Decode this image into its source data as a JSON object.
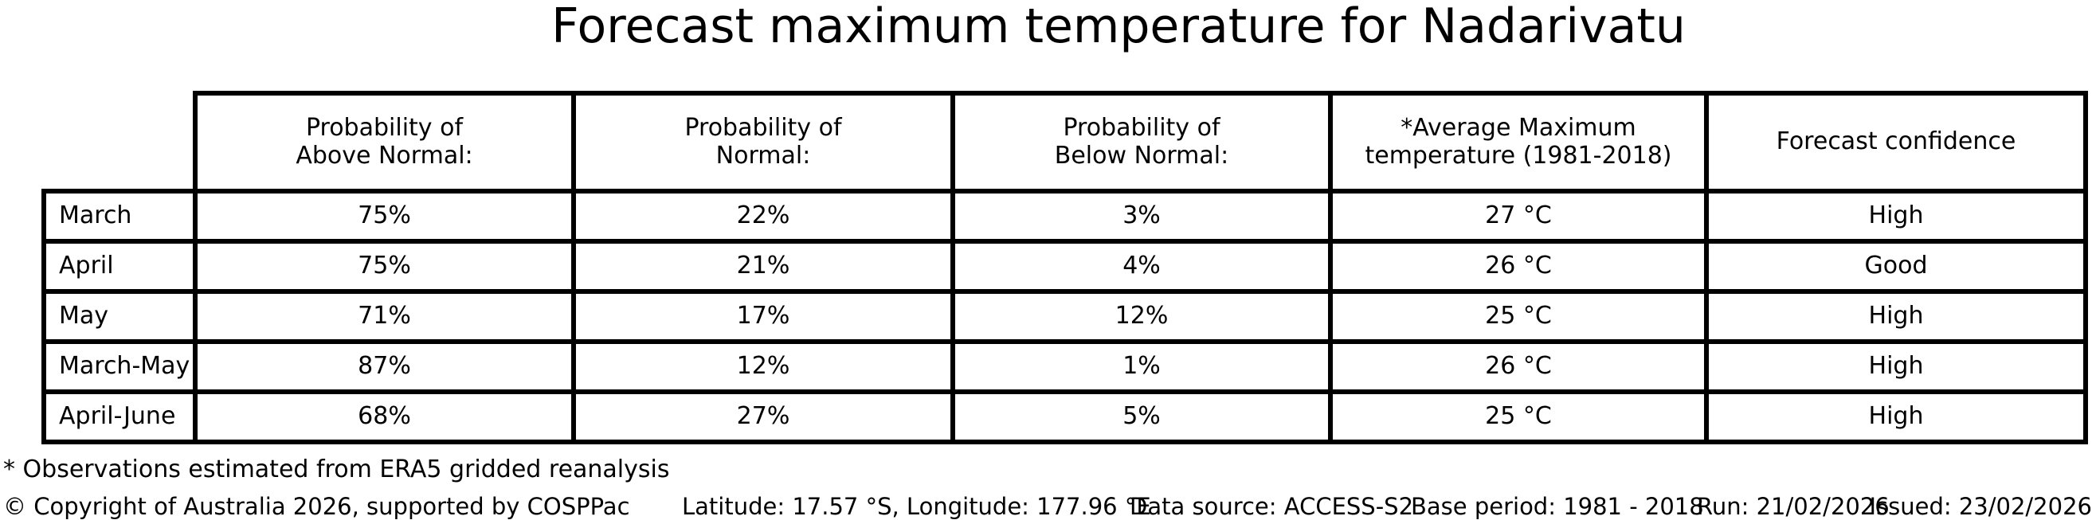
{
  "title": "Forecast maximum temperature for Nadarivatu",
  "table": {
    "col_headers": [
      "",
      "Probability of\nAbove Normal:",
      "Probability of\nNormal:",
      "Probability of\nBelow Normal:",
      "*Average Maximum\ntemperature (1981-2018)",
      "Forecast confidence"
    ],
    "rows": [
      {
        "label": "March",
        "above": "75%",
        "normal": "22%",
        "below": "3%",
        "avg_max": "27 °C",
        "confidence": "High"
      },
      {
        "label": "April",
        "above": "75%",
        "normal": "21%",
        "below": "4%",
        "avg_max": "26 °C",
        "confidence": "Good"
      },
      {
        "label": "May",
        "above": "71%",
        "normal": "17%",
        "below": "12%",
        "avg_max": "25 °C",
        "confidence": "High"
      },
      {
        "label": "March-May",
        "above": "87%",
        "normal": "12%",
        "below": "1%",
        "avg_max": "26 °C",
        "confidence": "High"
      },
      {
        "label": "April-June",
        "above": "68%",
        "normal": "27%",
        "below": "5%",
        "avg_max": "25 °C",
        "confidence": "High"
      }
    ]
  },
  "footnote": "* Observations estimated from ERA5 gridded reanalysis",
  "footer": {
    "copyright": "© Copyright of Australia 2026, supported by COSPPac",
    "location": "Latitude: 17.57 °S, Longitude: 177.96 °E",
    "data_source": "Data source: ACCESS-S2",
    "base_period": "Base period: 1981 - 2018",
    "run": "Run: 21/02/2026",
    "issued": "Issued: 23/02/2026"
  },
  "colors": {
    "background": "#ffffff",
    "text": "#000000",
    "border": "#000000"
  },
  "chart_data": {
    "type": "table",
    "title": "Forecast maximum temperature for Nadarivatu",
    "columns": [
      "Probability of Above Normal:",
      "Probability of Normal:",
      "Probability of Below Normal:",
      "*Average Maximum temperature (1981-2018)",
      "Forecast confidence"
    ],
    "row_labels": [
      "March",
      "April",
      "May",
      "March-May",
      "April-June"
    ],
    "rows": [
      {
        "period": "March",
        "above_normal_pct": 75,
        "normal_pct": 22,
        "below_normal_pct": 3,
        "avg_max_temp_c": 27,
        "confidence": "High"
      },
      {
        "period": "April",
        "above_normal_pct": 75,
        "normal_pct": 21,
        "below_normal_pct": 4,
        "avg_max_temp_c": 26,
        "confidence": "Good"
      },
      {
        "period": "May",
        "above_normal_pct": 71,
        "normal_pct": 17,
        "below_normal_pct": 12,
        "avg_max_temp_c": 25,
        "confidence": "High"
      },
      {
        "period": "March-May",
        "above_normal_pct": 87,
        "normal_pct": 12,
        "below_normal_pct": 1,
        "avg_max_temp_c": 26,
        "confidence": "High"
      },
      {
        "period": "April-June",
        "above_normal_pct": 68,
        "normal_pct": 27,
        "below_normal_pct": 5,
        "avg_max_temp_c": 25,
        "confidence": "High"
      }
    ],
    "footnote": "* Observations estimated from ERA5 gridded reanalysis",
    "metadata_line": "Latitude: 17.57 °S, Longitude: 177.96 °E | Data source: ACCESS-S2 | Base period: 1981 - 2018 | Run: 21/02/2026 | Issued: 23/02/2026"
  }
}
